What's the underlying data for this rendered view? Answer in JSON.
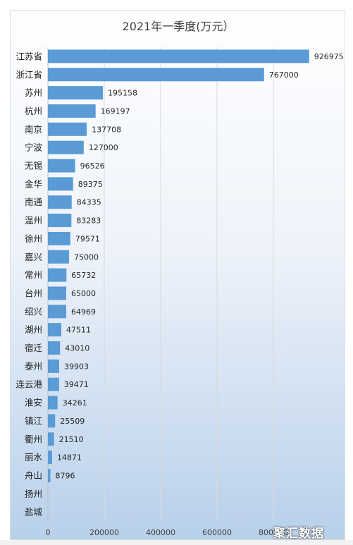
{
  "chart_data": {
    "type": "bar",
    "orientation": "horizontal",
    "title": "2021年一季度(万元）",
    "categories": [
      "江苏省",
      "浙江省",
      "苏州",
      "杭州",
      "南京",
      "宁波",
      "无锡",
      "金华",
      "南通",
      "温州",
      "徐州",
      "嘉兴",
      "常州",
      "台州",
      "绍兴",
      "湖州",
      "宿迁",
      "泰州",
      "连云港",
      "淮安",
      "镇江",
      "衢州",
      "丽水",
      "舟山",
      "扬州",
      "盐城"
    ],
    "values": [
      926975,
      767000,
      195158,
      169197,
      137708,
      127000,
      96526,
      89375,
      84335,
      83283,
      79571,
      75000,
      65732,
      65000,
      64969,
      47511,
      43010,
      39903,
      39471,
      34261,
      25509,
      21510,
      14871,
      8796,
      null,
      null
    ],
    "data_labels": [
      "926975",
      "767000",
      "195158",
      "169197",
      "137708",
      "127000",
      "96526",
      "89375",
      "84335",
      "83283",
      "79571",
      "75000",
      "65732",
      "65000",
      "64969",
      "47511",
      "43010",
      "39903",
      "39471",
      "34261",
      "25509",
      "21510",
      "14871",
      "8796",
      "",
      ""
    ],
    "xlim": [
      0,
      1000000
    ],
    "x_ticks": [
      "0",
      "200000",
      "400000",
      "600000",
      "800000"
    ],
    "grid": "vertical",
    "bar_color": "#5b9bd5"
  },
  "watermark": "聚汇数据"
}
